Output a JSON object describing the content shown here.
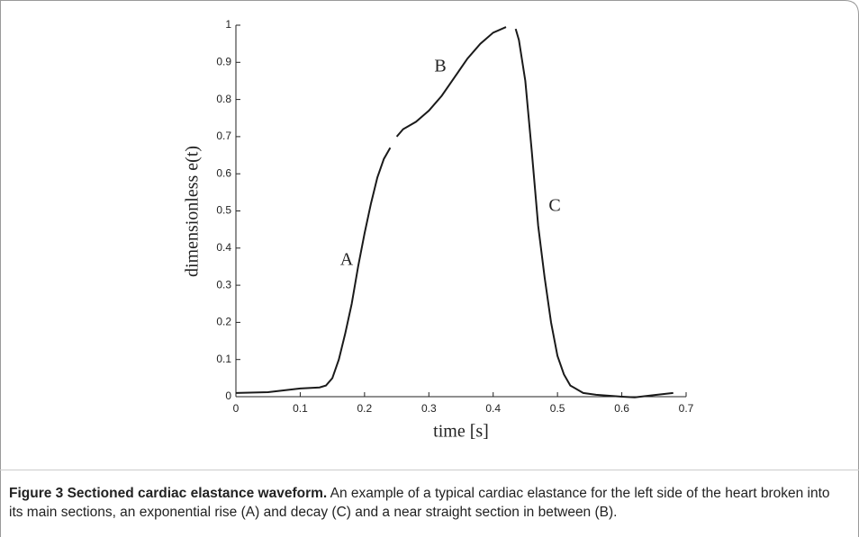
{
  "chart_data": {
    "type": "line",
    "xlabel": "time [s]",
    "ylabel": "dimensionless e(t)",
    "x": [
      0,
      0.05,
      0.1,
      0.13,
      0.14,
      0.15,
      0.16,
      0.17,
      0.18,
      0.19,
      0.2,
      0.21,
      0.22,
      0.23,
      0.24,
      0.245,
      0.25,
      0.26,
      0.28,
      0.3,
      0.32,
      0.34,
      0.36,
      0.38,
      0.4,
      0.42,
      0.43,
      0.435,
      0.44,
      0.45,
      0.46,
      0.47,
      0.48,
      0.49,
      0.5,
      0.51,
      0.52,
      0.54,
      0.56,
      0.6,
      0.62,
      0.65,
      0.68
    ],
    "series": [
      {
        "color": "#1a1a1a",
        "values": [
          0.01,
          0.012,
          0.022,
          0.025,
          0.03,
          0.05,
          0.1,
          0.17,
          0.25,
          0.35,
          0.44,
          0.52,
          0.59,
          0.64,
          0.67,
          null,
          0.7,
          0.72,
          0.74,
          0.77,
          0.81,
          0.86,
          0.91,
          0.95,
          0.98,
          0.995,
          null,
          0.99,
          0.96,
          0.85,
          0.66,
          0.46,
          0.32,
          0.2,
          0.11,
          0.06,
          0.03,
          0.01,
          0.005,
          0.0,
          -0.002,
          0.004,
          0.01
        ]
      }
    ],
    "annotations": [
      "A",
      "B",
      "C"
    ],
    "xlim": [
      0,
      0.7
    ],
    "xticks": [
      0,
      0.1,
      0.2,
      0.3,
      0.4,
      0.5,
      0.6,
      0.7
    ],
    "ylim": [
      0,
      1
    ],
    "yticks": [
      0,
      0.1,
      0.2,
      0.3,
      0.4,
      0.5,
      0.6,
      0.7,
      0.8,
      0.9,
      1
    ],
    "grid": false
  },
  "caption": {
    "title": "Figure 3 Sectioned cardiac elastance waveform.",
    "text": "An example of a typical cardiac elastance for the left side of the heart broken into its main sections, an exponential rise (A) and decay (C) and a near straight section in between (B)."
  }
}
